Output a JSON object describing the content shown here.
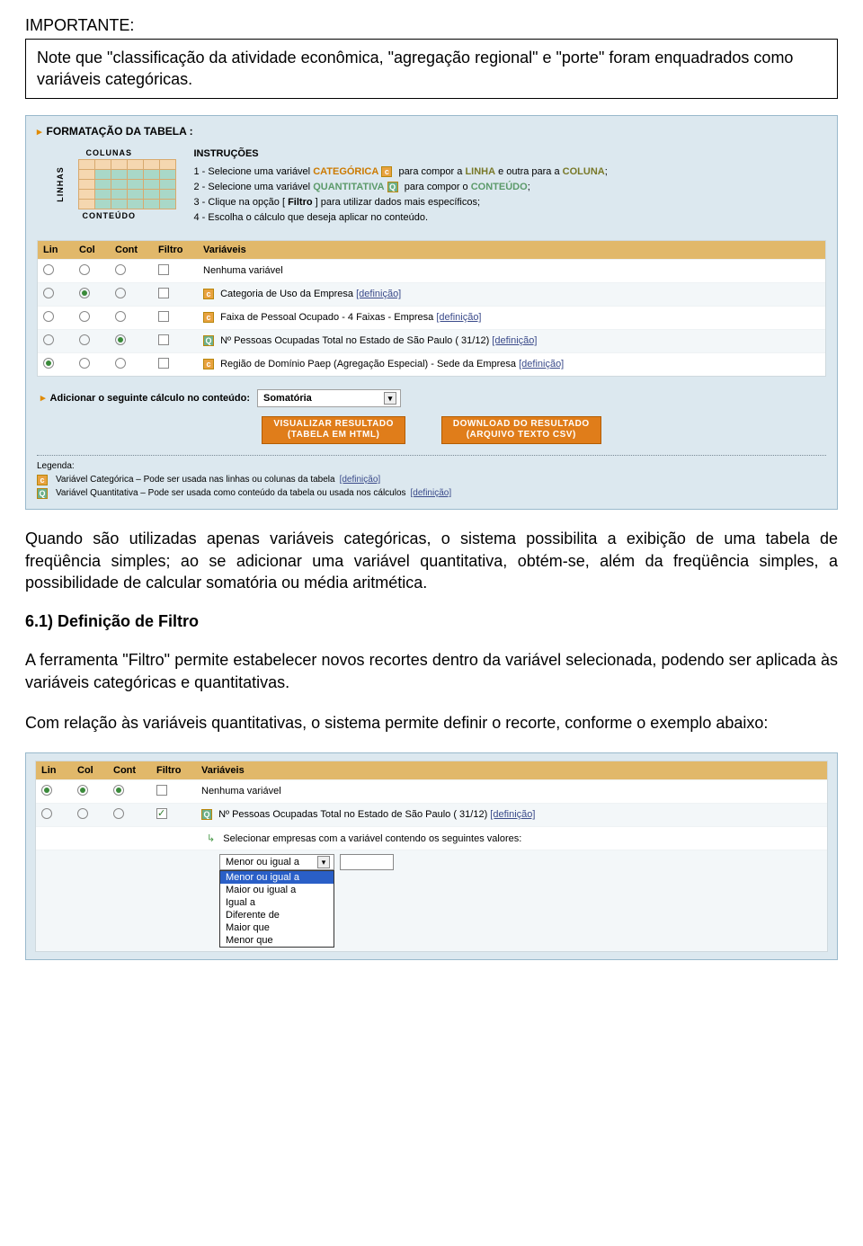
{
  "top": {
    "importante": "IMPORTANTE:",
    "note": "Note que \"classificação da atividade econômica, \"agregação regional\" e \"porte\" foram enquadrados como variáveis categóricas."
  },
  "panel": {
    "format_title": "FORMATAÇÃO DA TABELA :",
    "colunas": "COLUNAS",
    "linhas": "LINHAS",
    "conteudo": "CONTEÚDO",
    "instrucoes_title": "INSTRUÇÕES",
    "instr1_a": "1 - Selecione uma variável ",
    "instr1_cat": "CATEGÓRICA",
    "instr1_b": " para compor a ",
    "instr1_linha": "LINHA",
    "instr1_c": " e outra para a ",
    "instr1_coluna": "COLUNA",
    "instr1_d": ";",
    "instr2_a": "2 - Selecione uma variável ",
    "instr2_quant": "QUANTITATIVA",
    "instr2_b": " para compor o ",
    "instr2_cont": "CONTEÚDO",
    "instr2_c": ";",
    "instr3_a": "3 - Clique na opção [ ",
    "instr3_f": "Filtro",
    "instr3_b": " ] para utilizar dados mais específicos;",
    "instr4": "4 - Escolha o cálculo que deseja aplicar no conteúdo.",
    "headers": {
      "lin": "Lin",
      "col": "Col",
      "cont": "Cont",
      "filtro": "Filtro",
      "var": "Variáveis"
    },
    "rows": [
      {
        "lin": false,
        "col": false,
        "cont": false,
        "filtro": false,
        "badge": "",
        "label": "Nenhuma variável",
        "def": false
      },
      {
        "lin": false,
        "col": true,
        "cont": false,
        "filtro": false,
        "badge": "c",
        "label": "Categoria de Uso da Empresa ",
        "def": true
      },
      {
        "lin": false,
        "col": false,
        "cont": false,
        "filtro": false,
        "badge": "c",
        "label": "Faixa de Pessoal Ocupado - 4 Faixas - Empresa ",
        "def": true
      },
      {
        "lin": false,
        "col": false,
        "cont": true,
        "filtro": false,
        "badge": "q",
        "label": "Nº Pessoas Ocupadas Total no Estado de São Paulo ( 31/12) ",
        "def": true
      },
      {
        "lin": true,
        "col": false,
        "cont": false,
        "filtro": false,
        "badge": "c",
        "label": "Região de Domínio Paep (Agregação Especial) - Sede da Empresa ",
        "def": true
      }
    ],
    "calc_label": "Adicionar o seguinte cálculo no conteúdo:",
    "calc_value": "Somatória",
    "btn1_l1": "VISUALIZAR RESULTADO",
    "btn1_l2": "(TABELA EM HTML)",
    "btn2_l1": "DOWNLOAD DO RESULTADO",
    "btn2_l2": "(ARQUIVO TEXTO CSV)",
    "legend_title": "Legenda:",
    "legend1": "Variável Categórica – Pode ser usada nas linhas ou colunas da tabela ",
    "legend2": "Variável Quantitativa – Pode ser usada como conteúdo da tabela ou usada nos cálculos ",
    "deflink": "[definição]"
  },
  "para1": "Quando são utilizadas apenas variáveis categóricas, o sistema possibilita a exibição de uma tabela de freqüência simples; ao se adicionar uma variável quantitativa, obtém-se, além da freqüência simples, a possibilidade de calcular somatória ou média aritmética.",
  "h61": "6.1) Definição de Filtro",
  "para2": "A ferramenta \"Filtro\" permite estabelecer novos recortes dentro da variável selecionada, podendo ser aplicada às variáveis categóricas e quantitativas.",
  "para3": "Com relação às variáveis quantitativas, o sistema permite definir o recorte, conforme o exemplo abaixo:",
  "panel2": {
    "headers": {
      "lin": "Lin",
      "col": "Col",
      "cont": "Cont",
      "filtro": "Filtro",
      "var": "Variáveis"
    },
    "rows": [
      {
        "lin": true,
        "col": true,
        "cont": true,
        "filtro": false,
        "badge": "",
        "label": "Nenhuma variável",
        "def": false
      },
      {
        "lin": false,
        "col": false,
        "cont": false,
        "filtro": true,
        "badge": "q",
        "label": "Nº Pessoas Ocupadas Total no Estado de São Paulo ( 31/12) ",
        "def": true
      }
    ],
    "sub_label": "Selecionar empresas com a variável contendo os seguintes valores:",
    "select_value": "Menor ou igual a",
    "options": [
      "Menor ou igual a",
      "Maior ou igual a",
      "Igual a",
      "Diferente de",
      "Maior que",
      "Menor que"
    ]
  }
}
